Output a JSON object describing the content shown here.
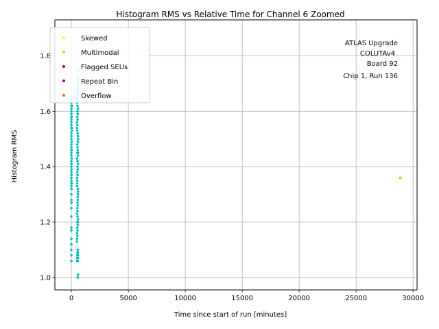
{
  "chart_data": {
    "type": "scatter",
    "title": "Histogram RMS vs Relative Time for Channel 6 Zoomed",
    "xlabel": "Time since start of run [minutes]",
    "ylabel": "Histogram RMS",
    "xlim": [
      -1450,
      30350
    ],
    "ylim": [
      0.955,
      1.93
    ],
    "xticks": [
      0,
      5000,
      10000,
      15000,
      20000,
      25000,
      30000
    ],
    "yticks": [
      1.0,
      1.2,
      1.4,
      1.6,
      1.8
    ],
    "ytick_labels": [
      "1.0",
      "1.2",
      "1.4",
      "1.6",
      "1.8"
    ],
    "grid": true,
    "legend_position": "top-left",
    "annotation": [
      "ATLAS Upgrade",
      "COLUTAv4",
      "Board 92",
      "Chip 1, Run 136"
    ],
    "series": [
      {
        "name": "Skewed",
        "color": "#ffff00",
        "x": [],
        "y": []
      },
      {
        "name": "Multimodal",
        "color": "#7cfc00",
        "x": [
          28880
        ],
        "y": [
          1.36
        ]
      },
      {
        "name": "Flagged SEUs",
        "color": "#c00000",
        "x": [],
        "y": []
      },
      {
        "name": "Repeat Bin",
        "color": "#800080",
        "x": [],
        "y": []
      },
      {
        "name": "Overflow",
        "color": "#ff6600",
        "x": [],
        "y": []
      }
    ],
    "main_points": {
      "color": "#00bfbf",
      "x": [
        0,
        0,
        0,
        0,
        0,
        0,
        0,
        0,
        0,
        0,
        0,
        0,
        0,
        0,
        0,
        0,
        0,
        0,
        0,
        0,
        0,
        0,
        0,
        0,
        0,
        0,
        0,
        0,
        0,
        0,
        0,
        0,
        0,
        0,
        0,
        0,
        0,
        0,
        0,
        0,
        20,
        30,
        40,
        10,
        20,
        30,
        40,
        20,
        50,
        60,
        500,
        520,
        540,
        560,
        580,
        500,
        520,
        540,
        560,
        580,
        500,
        520,
        540,
        560,
        580,
        500,
        520,
        540,
        560,
        580,
        500,
        520,
        540,
        560,
        580,
        500,
        520,
        540,
        560,
        580,
        500,
        520,
        540,
        560,
        580,
        500,
        520,
        540,
        560,
        580,
        500,
        520,
        540,
        560,
        580,
        500,
        520,
        540,
        560,
        580,
        500,
        540,
        580,
        520,
        560,
        500,
        540,
        580,
        520,
        560,
        500,
        540,
        580,
        520,
        560,
        500,
        540,
        580,
        520,
        560,
        560,
        580,
        560,
        580,
        560,
        580,
        580,
        580,
        580,
        580
      ],
      "y": [
        1.06,
        1.08,
        1.1,
        1.12,
        1.14,
        1.17,
        1.18,
        1.22,
        1.25,
        1.27,
        1.3,
        1.32,
        1.34,
        1.36,
        1.38,
        1.4,
        1.42,
        1.44,
        1.46,
        1.48,
        1.5,
        1.52,
        1.54,
        1.56,
        1.58,
        1.6,
        1.62,
        1.63,
        1.35,
        1.45,
        1.55,
        1.28,
        1.33,
        1.41,
        1.47,
        1.51,
        1.57,
        1.59,
        1.61,
        1.37,
        1.32,
        1.43,
        1.53,
        1.39,
        1.49,
        1.58,
        1.34,
        1.46,
        1.54,
        1.62,
        1.13,
        1.15,
        1.17,
        1.19,
        1.21,
        1.23,
        1.25,
        1.27,
        1.29,
        1.31,
        1.33,
        1.35,
        1.37,
        1.39,
        1.41,
        1.43,
        1.45,
        1.47,
        1.49,
        1.51,
        1.53,
        1.55,
        1.57,
        1.59,
        1.61,
        1.63,
        1.65,
        1.67,
        1.69,
        1.71,
        1.14,
        1.18,
        1.22,
        1.26,
        1.3,
        1.34,
        1.38,
        1.42,
        1.46,
        1.5,
        1.54,
        1.58,
        1.62,
        1.66,
        1.7,
        1.16,
        1.2,
        1.24,
        1.28,
        1.32,
        1.36,
        1.4,
        1.44,
        1.48,
        1.52,
        1.56,
        1.6,
        1.64,
        1.68,
        1.72,
        1.06,
        1.08,
        1.09,
        1.07,
        1.1,
        1.06,
        1.09,
        1.07,
        1.08,
        1.1,
        1.0,
        1.01,
        1.06,
        1.08,
        1.59,
        1.64,
        1.75,
        1.2,
        1.3,
        1.45
      ]
    },
    "faint_points": {
      "color": "#b0ecec",
      "x": [
        300,
        400,
        450,
        350,
        420,
        380,
        260,
        330,
        470,
        250,
        360,
        440,
        800,
        700
      ],
      "y": [
        1.84,
        1.82,
        1.78,
        1.75,
        1.72,
        1.7,
        1.68,
        1.66,
        1.74,
        1.8,
        1.79,
        1.69,
        1.89,
        1.72
      ]
    }
  }
}
